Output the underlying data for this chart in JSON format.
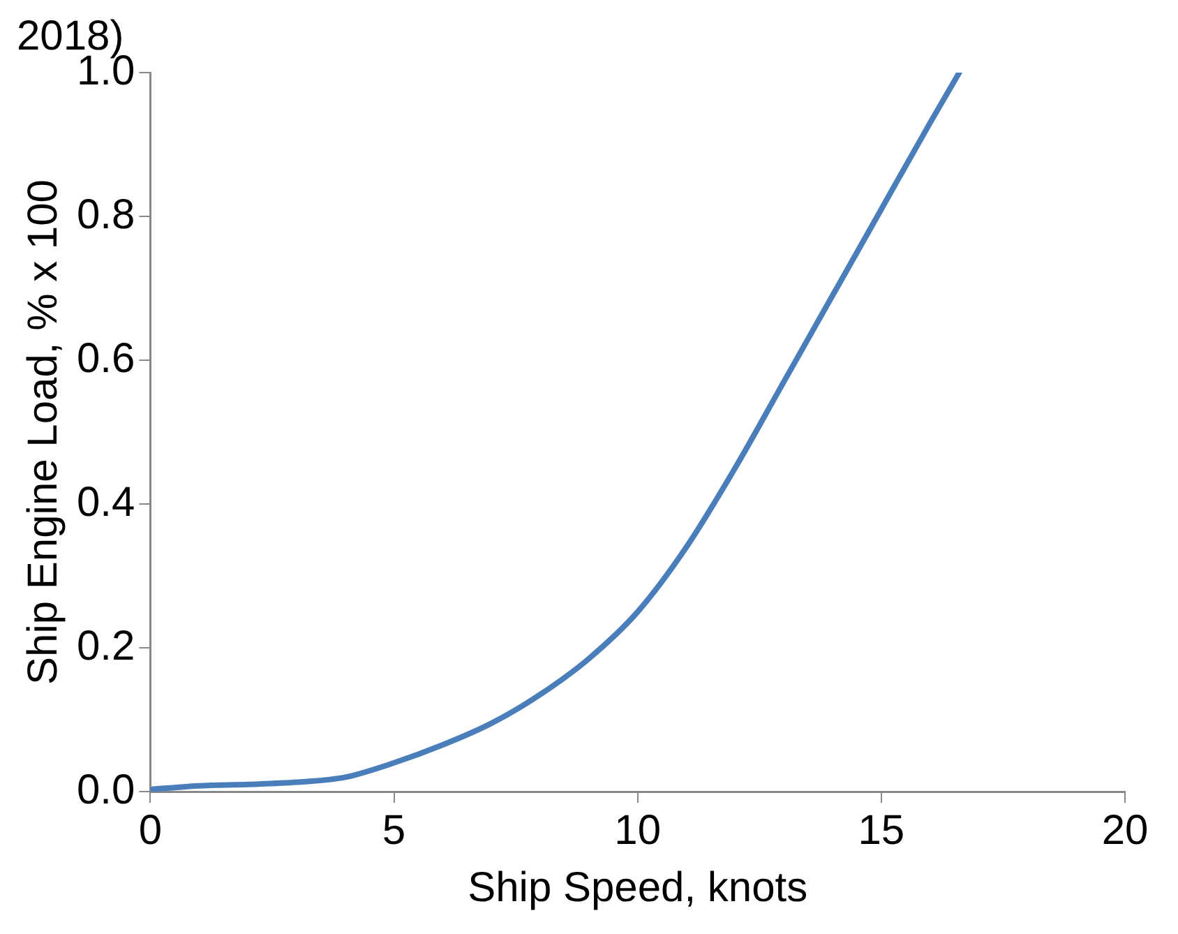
{
  "chart_data": {
    "type": "line",
    "xlabel": "Ship Speed, knots",
    "ylabel": "Ship Engine Load, % x 100",
    "annotations": [
      "2018)"
    ],
    "x": [
      0,
      1,
      2,
      3,
      4,
      5,
      6,
      7,
      8,
      9,
      10,
      11,
      12,
      13,
      14,
      15,
      16,
      16.6
    ],
    "series": [
      {
        "color": "#4a7ebb",
        "values": [
          0.003,
          0.008,
          0.01,
          0.013,
          0.02,
          0.04,
          0.065,
          0.095,
          0.135,
          0.185,
          0.25,
          0.34,
          0.45,
          0.57,
          0.69,
          0.81,
          0.93,
          1.0
        ]
      }
    ],
    "xlim": [
      0,
      20
    ],
    "xticks": [
      0,
      5,
      10,
      15,
      20
    ],
    "ylim": [
      0,
      1
    ],
    "yticks": [
      {
        "value": 0,
        "label": "0.0"
      },
      {
        "value": 0.2,
        "label": "0.2"
      },
      {
        "value": 0.4,
        "label": "0.4"
      },
      {
        "value": 0.6,
        "label": "0.6"
      },
      {
        "value": 0.8,
        "label": "0.8"
      },
      {
        "value": 1,
        "label": "1.0"
      }
    ],
    "grid": false,
    "legend": false,
    "marker": "none",
    "line_style": "solid"
  }
}
